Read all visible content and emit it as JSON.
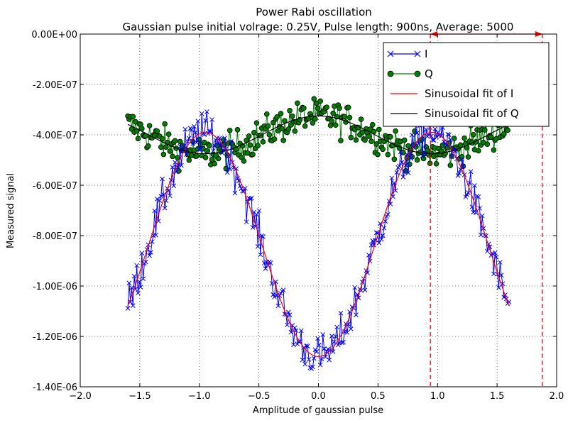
{
  "chart_data": {
    "type": "line",
    "title": "Power Rabi oscillation",
    "subtitle": "Gaussian pulse initial volrage: 0.25V, Pulse length: 900ns, Average: 5000",
    "xlabel": "Amplitude of gaussian pulse",
    "ylabel": "Measured signal",
    "xlim": [
      -2.0,
      2.0
    ],
    "ylim": [
      -1.4e-06,
      0.0
    ],
    "xticks": [
      -2.0,
      -1.5,
      -1.0,
      -0.5,
      0.0,
      0.5,
      1.0,
      1.5,
      2.0
    ],
    "xtick_labels": [
      "−2.0",
      "−1.5",
      "−1.0",
      "−0.5",
      "0.0",
      "0.5",
      "1.0",
      "1.5",
      "2.0"
    ],
    "yticks": [
      0.0,
      -2e-07,
      -4e-07,
      -6e-07,
      -8e-07,
      -1e-06,
      -1.2e-06,
      -1.4e-06
    ],
    "ytick_labels": [
      "0.00E+00",
      "-2.00E-07",
      "-4.00E-07",
      "-6.00E-07",
      "-8.00E-07",
      "-1.00E-06",
      "-1.20E-06",
      "-1.40E-06"
    ],
    "grid": true,
    "legend_position": "top-right",
    "x_range": [
      -1.6,
      1.6
    ],
    "point_count": 300,
    "series": [
      {
        "name": "I",
        "kind": "data",
        "marker": "x",
        "color": "#0000ff",
        "model": {
          "offset": -8.35e-07,
          "amplitude": 4.45e-07,
          "period": 1.9,
          "peak_at": 0.95,
          "noise": 6.5e-08
        }
      },
      {
        "name": "Q",
        "kind": "data",
        "marker": "o",
        "color": "#008000",
        "fill": "#007f00",
        "model": {
          "offset": -4e-07,
          "amplitude": -7.5e-08,
          "period": 1.9,
          "peak_at": 0.95,
          "noise": 5.5e-08
        }
      },
      {
        "name": "Sinusoidal fit of I",
        "kind": "fit",
        "color": "#ff0000",
        "model": {
          "offset": -8.35e-07,
          "amplitude": 4.45e-07,
          "period": 1.9,
          "peak_at": 0.95
        }
      },
      {
        "name": "Sinusoidal fit of Q",
        "kind": "fit",
        "color": "#000000",
        "model": {
          "offset": -4e-07,
          "amplitude": -7.5e-08,
          "period": 1.9,
          "peak_at": 0.95
        }
      }
    ],
    "annotations": {
      "vertical_lines_x": [
        0.94,
        1.88
      ],
      "vertical_line_color": "#ff0000",
      "arrow_between_x": [
        0.94,
        1.88
      ],
      "arrow_y": 0.0
    }
  }
}
